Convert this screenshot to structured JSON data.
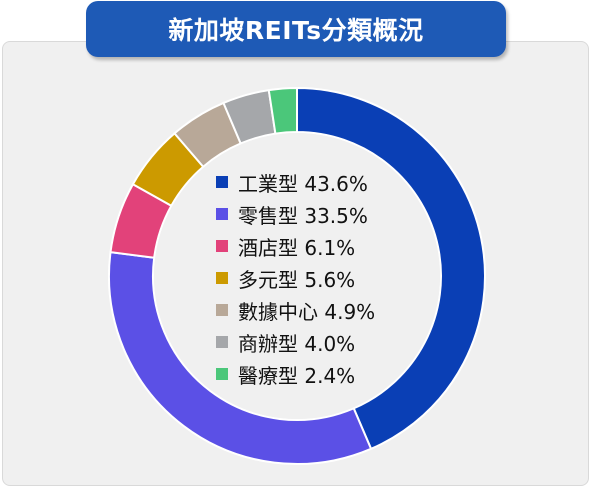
{
  "title": "新加坡REITs分類概況",
  "chart_data": {
    "type": "pie",
    "donut": true,
    "title": "新加坡REITs分類概況",
    "legend_placement": "center",
    "slices": [
      {
        "label": "工業型",
        "value": 43.6,
        "value_text": "43.6%",
        "color": "#0a3fb5"
      },
      {
        "label": "零售型",
        "value": 33.5,
        "value_text": "33.5%",
        "color": "#5b50e6"
      },
      {
        "label": "酒店型",
        "value": 6.1,
        "value_text": "6.1%",
        "color": "#e2427a"
      },
      {
        "label": "多元型",
        "value": 5.6,
        "value_text": "5.6%",
        "color": "#cc9a00"
      },
      {
        "label": "數據中心",
        "value": 4.9,
        "value_text": "4.9%",
        "color": "#b8a898"
      },
      {
        "label": "商辦型",
        "value": 4.0,
        "value_text": "4.0%",
        "color": "#a5a7aa"
      },
      {
        "label": "醫療型",
        "value": 2.4,
        "value_text": "2.4%",
        "color": "#4bc77a"
      }
    ]
  }
}
